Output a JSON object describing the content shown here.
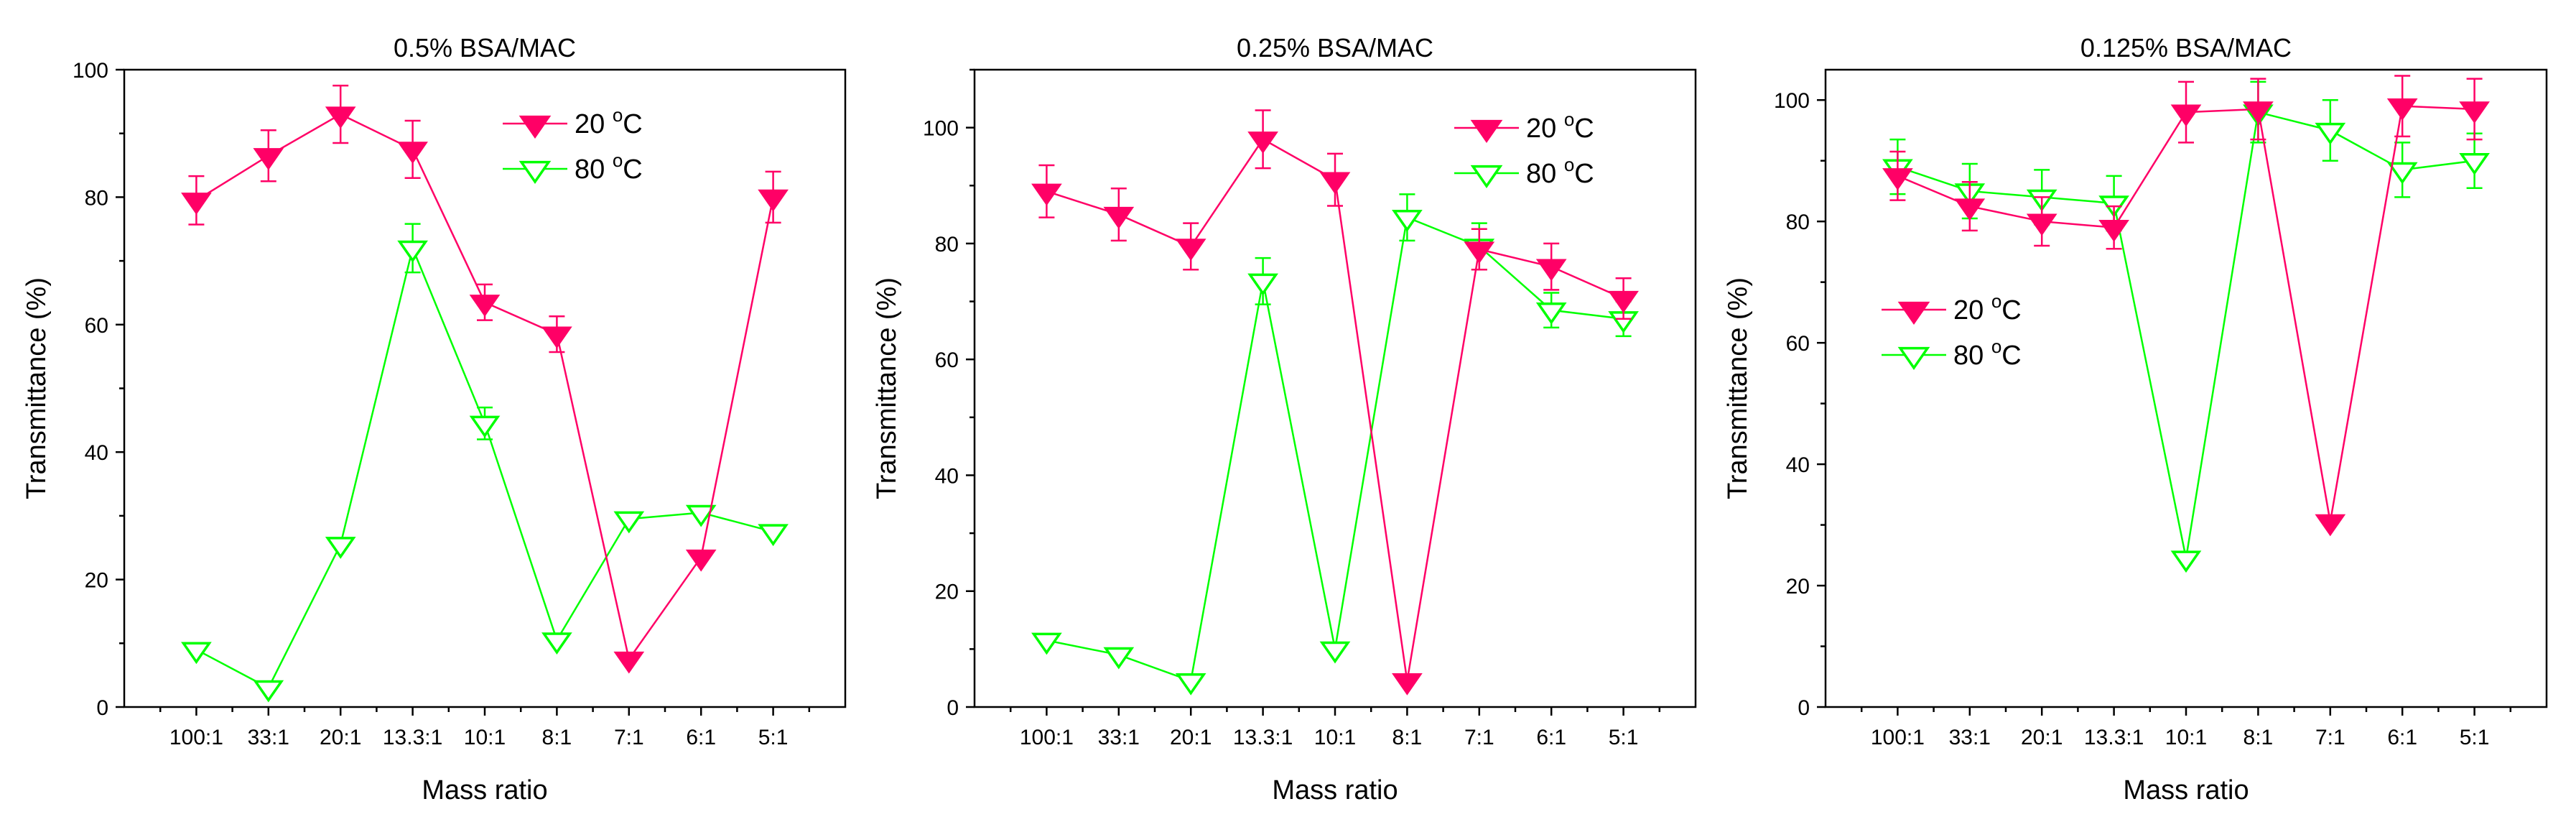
{
  "chart_data": [
    {
      "type": "line",
      "title": "0.5% BSA/MAC",
      "xlabel": "Mass ratio",
      "ylabel": "Transmittance (%)",
      "categories": [
        "100:1",
        "33:1",
        "20:1",
        "13.3:1",
        "10:1",
        "8:1",
        "7:1",
        "6:1",
        "5:1"
      ],
      "ylim": [
        0,
        100
      ],
      "yticks": [
        0,
        20,
        40,
        60,
        80,
        100
      ],
      "legend_position": "top-right",
      "series": [
        {
          "name": "20 °C",
          "label_main": "20 ",
          "label_sup": "o",
          "label_unit": "C",
          "color": "#ff0066",
          "marker": "filled-down-triangle",
          "values": [
            79.5,
            86.5,
            93.0,
            87.5,
            63.5,
            58.5,
            7.5,
            23.5,
            80.0
          ],
          "errors": [
            3.8,
            4.0,
            4.5,
            4.5,
            2.8,
            2.8,
            0.5,
            0.5,
            4.0
          ]
        },
        {
          "name": "80 °C",
          "label_main": "80 ",
          "label_sup": "o",
          "label_unit": "C",
          "color": "#00ff00",
          "marker": "open-down-triangle",
          "values": [
            9.0,
            3.0,
            25.5,
            72.0,
            44.5,
            10.5,
            29.5,
            30.5,
            27.5
          ],
          "errors": [
            0.5,
            0.5,
            0.5,
            3.8,
            2.5,
            0.5,
            0.5,
            0.5,
            0.5
          ]
        }
      ]
    },
    {
      "type": "line",
      "title": "0.25% BSA/MAC",
      "xlabel": "Mass ratio",
      "ylabel": "Transmittance (%)",
      "categories": [
        "100:1",
        "33:1",
        "20:1",
        "13.3:1",
        "10:1",
        "8:1",
        "7:1",
        "6:1",
        "5:1"
      ],
      "ylim": [
        0,
        110
      ],
      "yticks": [
        0,
        20,
        40,
        60,
        80,
        100
      ],
      "legend_position": "top-right",
      "series": [
        {
          "name": "20 °C",
          "label_main": "20 ",
          "label_sup": "o",
          "label_unit": "C",
          "color": "#ff0066",
          "marker": "filled-down-triangle",
          "values": [
            89.0,
            85.0,
            79.5,
            98.0,
            91.0,
            4.5,
            79.0,
            76.0,
            70.5
          ],
          "errors": [
            4.5,
            4.5,
            4.0,
            5.0,
            4.5,
            0.5,
            3.5,
            4.0,
            3.5
          ]
        },
        {
          "name": "80 °C",
          "label_main": "80 ",
          "label_sup": "o",
          "label_unit": "C",
          "color": "#00ff00",
          "marker": "open-down-triangle",
          "values": [
            11.5,
            9.0,
            4.5,
            73.5,
            10.0,
            84.5,
            79.5,
            68.5,
            67.0
          ],
          "errors": [
            0.5,
            0.5,
            0.5,
            4.0,
            0.5,
            4.0,
            4.0,
            3.0,
            3.0
          ]
        }
      ]
    },
    {
      "type": "line",
      "title": "0.125% BSA/MAC",
      "xlabel": "Mass ratio",
      "ylabel": "Transmittance (%)",
      "categories": [
        "100:1",
        "33:1",
        "20:1",
        "13.3:1",
        "10:1",
        "8:1",
        "7:1",
        "6:1",
        "5:1"
      ],
      "ylim": [
        0,
        105
      ],
      "yticks": [
        0,
        20,
        40,
        60,
        80,
        100
      ],
      "legend_position": "center-left",
      "series": [
        {
          "name": "20 °C",
          "label_main": "20 ",
          "label_sup": "o",
          "label_unit": "C",
          "color": "#ff0066",
          "marker": "filled-down-triangle",
          "values": [
            87.5,
            82.5,
            80.0,
            79.0,
            98.0,
            98.5,
            30.5,
            99.0,
            98.5
          ],
          "errors": [
            4.0,
            4.0,
            4.0,
            3.5,
            5.0,
            5.0,
            0.5,
            5.0,
            5.0
          ]
        },
        {
          "name": "80 °C",
          "label_main": "80 ",
          "label_sup": "o",
          "label_unit": "C",
          "color": "#00ff00",
          "marker": "open-down-triangle",
          "values": [
            89.0,
            85.0,
            84.0,
            83.0,
            24.5,
            98.0,
            95.0,
            88.5,
            90.0
          ],
          "errors": [
            4.5,
            4.5,
            4.5,
            4.5,
            0.5,
            5.0,
            5.0,
            4.5,
            4.5
          ]
        }
      ]
    }
  ]
}
